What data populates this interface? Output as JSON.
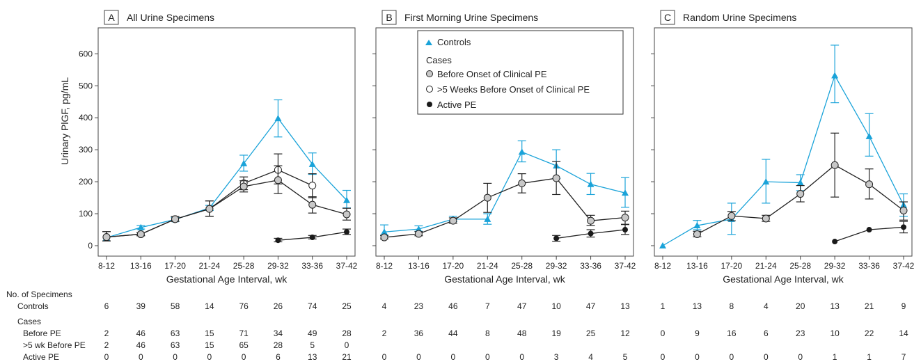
{
  "colors": {
    "controls": "#1aa3d9",
    "cases": "#222222",
    "before_fill": "#c8c8c8",
    "gt5_fill": "#ffffff",
    "active_fill": "#1a1a1a"
  },
  "chart_data": {
    "type": "line",
    "ylabel": "Urinary PlGF, pg/mL",
    "xlabel": "Gestational Age Interval, wk",
    "ylim": [
      0,
      650
    ],
    "yticks": [
      0,
      100,
      200,
      300,
      400,
      500,
      600
    ],
    "categories": [
      "8-12",
      "13-16",
      "17-20",
      "21-24",
      "25-28",
      "29-32",
      "33-36",
      "37-42"
    ],
    "legend": {
      "controls": "Controls",
      "cases_header": "Cases",
      "before": "Before Onset of Clinical PE",
      "gt5": ">5 Weeks Before Onset of Clinical PE",
      "active": "Active PE"
    },
    "panels": [
      {
        "letter": "A",
        "title": "All Urine Specimens",
        "series": {
          "controls": {
            "values": [
              25,
              57,
              82,
              118,
              257,
              398,
              255,
              142
            ],
            "lo": [
              null,
              52,
              77,
              110,
              233,
              340,
              223,
              118
            ],
            "hi": [
              null,
              63,
              88,
              126,
              283,
              456,
              290,
              173
            ]
          },
          "before": {
            "values": [
              27,
              36,
              83,
              115,
              185,
              205,
              128,
              98
            ],
            "lo": [
              15,
              31,
              76,
              92,
              168,
              163,
              102,
              80
            ],
            "hi": [
              44,
              41,
              91,
              140,
              203,
              250,
              153,
              117
            ]
          },
          "gt5": {
            "values": [
              27,
              36,
              83,
              115,
              195,
              237,
              188,
              null
            ],
            "lo": [
              15,
              31,
              76,
              92,
              175,
              193,
              150,
              null
            ],
            "hi": [
              44,
              41,
              91,
              140,
              215,
              287,
              225,
              null
            ]
          },
          "active": {
            "values": [
              null,
              null,
              null,
              null,
              null,
              17,
              26,
              43
            ],
            "lo": [
              null,
              null,
              null,
              null,
              null,
              12,
              21,
              35
            ],
            "hi": [
              null,
              null,
              null,
              null,
              null,
              23,
              32,
              52
            ]
          }
        },
        "counts": {
          "controls": [
            6,
            39,
            58,
            14,
            76,
            26,
            74,
            25
          ],
          "before": [
            2,
            46,
            63,
            15,
            71,
            34,
            49,
            28
          ],
          "gt5": [
            2,
            46,
            63,
            15,
            65,
            28,
            5,
            0
          ],
          "active": [
            0,
            0,
            0,
            0,
            0,
            6,
            13,
            21
          ]
        }
      },
      {
        "letter": "B",
        "title": "First Morning Urine Specimens",
        "series": {
          "controls": {
            "values": [
              43,
              52,
              83,
              83,
              293,
              250,
              192,
              165
            ],
            "lo": [
              33,
              45,
              75,
              67,
              262,
              210,
              160,
              120
            ],
            "hi": [
              65,
              62,
              92,
              100,
              328,
              300,
              226,
              213
            ]
          },
          "before": {
            "values": [
              26,
              37,
              78,
              150,
              195,
              211,
              78,
              88
            ],
            "lo": [
              21,
              31,
              70,
              104,
              165,
              160,
              63,
              67
            ],
            "hi": [
              32,
              44,
              87,
              195,
              225,
              263,
              95,
              108
            ]
          },
          "active": {
            "values": [
              null,
              null,
              null,
              null,
              null,
              23,
              38,
              50
            ],
            "lo": [
              null,
              null,
              null,
              null,
              null,
              14,
              27,
              35
            ],
            "hi": [
              null,
              null,
              null,
              null,
              null,
              32,
              50,
              66
            ]
          }
        },
        "counts": {
          "controls": [
            4,
            23,
            46,
            7,
            47,
            10,
            47,
            13
          ],
          "before": [
            2,
            36,
            44,
            8,
            48,
            19,
            25,
            12
          ],
          "gt5": [
            "",
            "",
            "",
            "",
            "",
            "",
            "",
            ""
          ],
          "active": [
            0,
            0,
            0,
            0,
            0,
            3,
            4,
            5
          ]
        }
      },
      {
        "letter": "C",
        "title": "Random Urine Specimens",
        "series": {
          "controls": {
            "values": [
              0,
              63,
              83,
              200,
              197,
              532,
              342,
              127
            ],
            "lo": [
              null,
              50,
              35,
              133,
              172,
              447,
              280,
              92
            ],
            "hi": [
              null,
              79,
              133,
              270,
              222,
              627,
              413,
              162
            ]
          },
          "before": {
            "values": [
              null,
              36,
              93,
              85,
              162,
              252,
              192,
              110
            ],
            "lo": [
              null,
              28,
              78,
              76,
              137,
              152,
              146,
              80
            ],
            "hi": [
              null,
              45,
              107,
              95,
              188,
              352,
              240,
              137
            ]
          },
          "active": {
            "values": [
              null,
              null,
              null,
              null,
              null,
              13,
              50,
              58
            ],
            "lo": [
              null,
              null,
              null,
              null,
              null,
              null,
              null,
              40
            ],
            "hi": [
              null,
              null,
              null,
              null,
              null,
              null,
              null,
              76
            ]
          }
        },
        "counts": {
          "controls": [
            1,
            13,
            8,
            4,
            20,
            13,
            21,
            9
          ],
          "before": [
            0,
            9,
            16,
            6,
            23,
            10,
            22,
            14
          ],
          "gt5": [
            "",
            "",
            "",
            "",
            "",
            "",
            "",
            ""
          ],
          "active": [
            0,
            0,
            0,
            0,
            0,
            1,
            1,
            7
          ]
        }
      }
    ]
  },
  "table": {
    "heading": "No. of Specimens",
    "row_labels": {
      "controls": "Controls",
      "cases": "Cases",
      "before": "Before PE",
      "gt5": ">5 wk Before PE",
      "active": "Active PE"
    }
  }
}
